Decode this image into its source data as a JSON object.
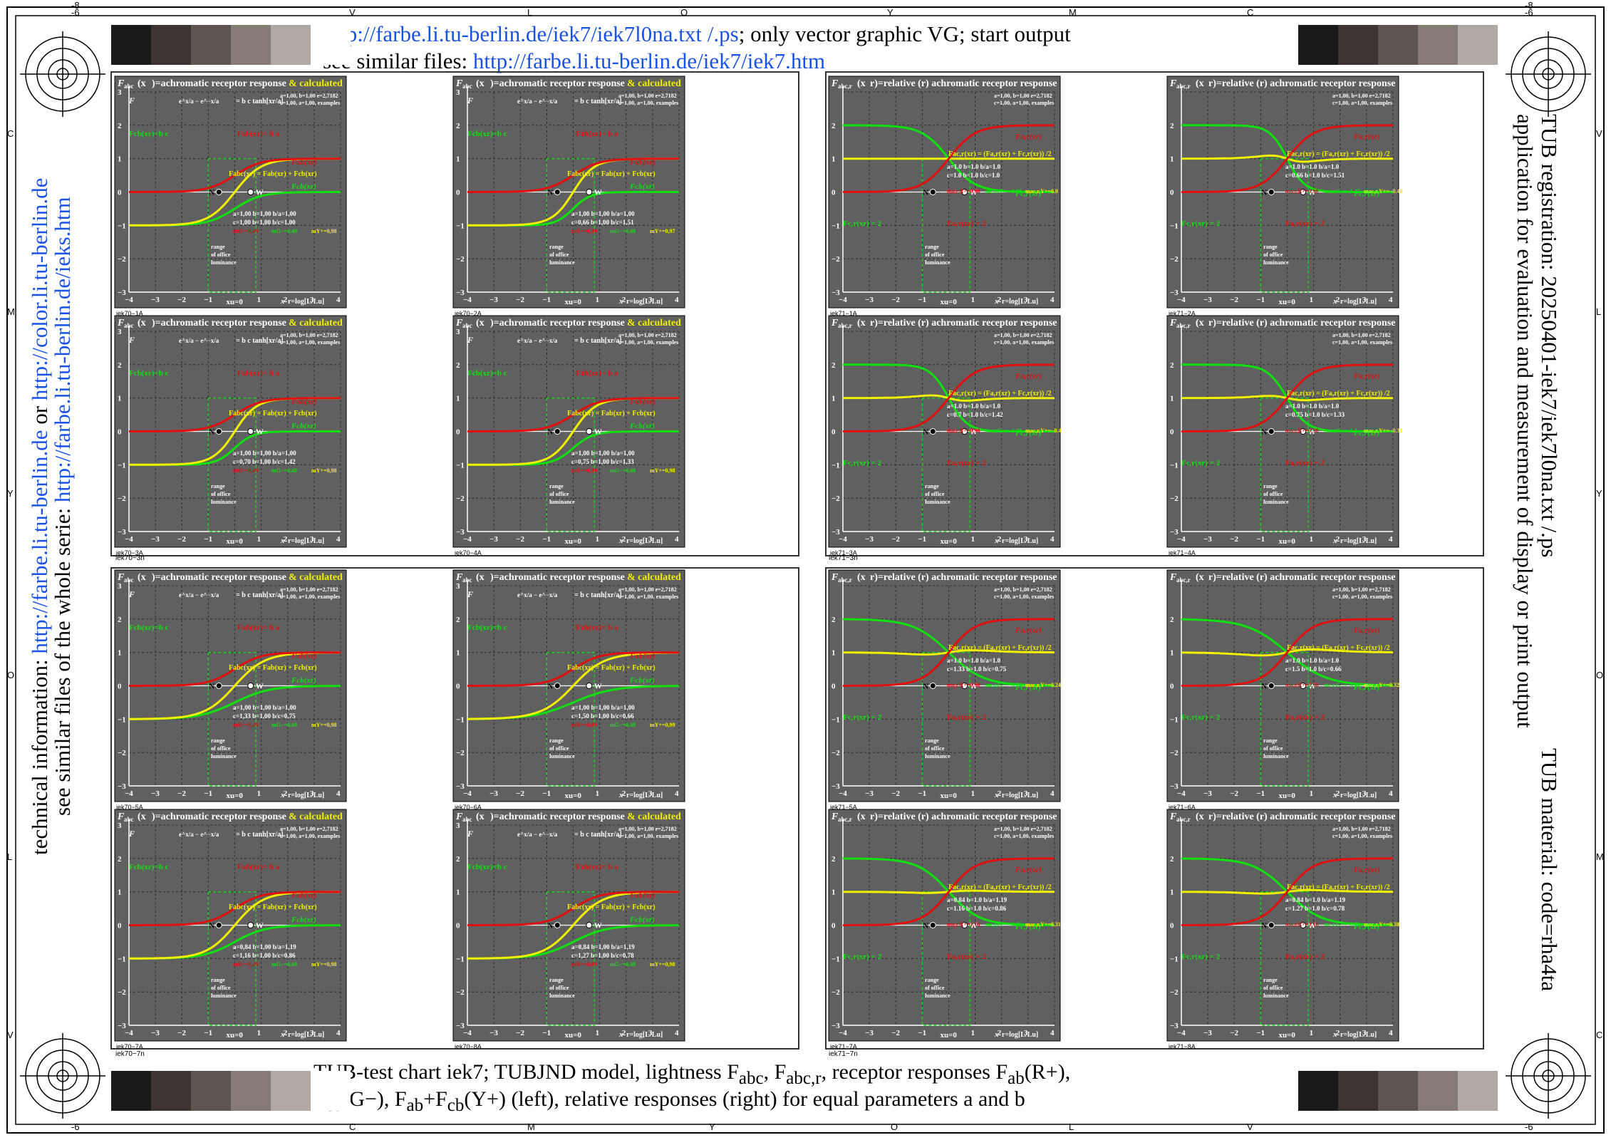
{
  "header": {
    "line1_link": "http://farbe.li.tu-berlin.de/iek7/iek7l0na.txt /.ps",
    "line1_text": "; only vector graphic VG; start output",
    "line2_text": "see similar files: ",
    "line2_link": "http://farbe.li.tu-berlin.de/iek7/iek7.htm"
  },
  "footer": {
    "line1": "TUB-test chart iek7; TUBJND model, lightness F",
    "line1_sub1": "abc",
    "line1_mid": ", F",
    "line1_sub2": "abc,r",
    "line1_mid2": ", receptor responses F",
    "line1_sub3": "ab",
    "line1_end": "(R+),",
    "line2_a": "F",
    "line2_sub1": "cb",
    "line2_b": "(G−), F",
    "line2_sub2": "ab",
    "line2_c": "+F",
    "line2_sub3": "cb",
    "line2_d": "(Y+) (left), relative responses (right) for equal parameters a and b"
  },
  "left_side": {
    "line1": "see similar files of the whole serie: ",
    "line1_link": "http://farbe.li.tu-berlin.de/ieks.htm",
    "line2": "technical information: ",
    "line2_link": "http://farbe.li.tu-berlin.de",
    "line2_or": " or ",
    "line2_link2": "http://color.li.tu-berlin.de"
  },
  "right_side": {
    "line1": "TUB registration: 20250401-iek7/iek7l0na.txt /.ps",
    "line2": "application for evaluation and measurement of display or print output",
    "line3": "TUB material: code=rha4ta"
  },
  "edge_labels": {
    "top": [
      "-6",
      "V",
      "L",
      "O",
      "Y",
      "M",
      "C",
      "-6"
    ],
    "bottom": [
      "-6",
      "C",
      "M",
      "Y",
      "O",
      "L",
      "V",
      "-6"
    ],
    "top_left_corner": "-8",
    "top_right_corner": "-8",
    "left": [
      "C",
      "M",
      "Y",
      "O",
      "L",
      "V"
    ],
    "right": [
      "V",
      "L",
      "Y",
      "O",
      "M",
      "C"
    ]
  },
  "colors": {
    "panel_bg": "#606060",
    "red": "#e01010",
    "green": "#10e010",
    "yellow": "#f0f000",
    "link": "#1a52e6"
  },
  "gray_ramp": [
    "#1a1a1a",
    "#3c3532",
    "#5e5450",
    "#867a74",
    "#b0a8a3",
    "#ffffff"
  ],
  "group_labels": {
    "left_top": "iek70−3n",
    "left_bottom": "iek70−7n",
    "right_top": "iek71−3n",
    "right_bottom": "iek71−7n"
  },
  "panel_text": {
    "left_title": "achromatic receptor response",
    "left_title_add": "& calculated",
    "right_title": "=relative (r) achromatic receptor response",
    "formula_tanh": "= b c tanh[x",
    "examples1": "a=1,00, b=1,00 e=2,7182",
    "examples2": "c=1,00, a=1,00, examples",
    "range": [
      "range",
      "of office",
      "luminance"
    ],
    "N": "N",
    "W": "W",
    "xu0": "x",
    "xlabel": "=log[L/L",
    "x_ticks": [
      "−4",
      "−3",
      "−2",
      "−1",
      "0",
      "1",
      "2",
      "3",
      "4"
    ],
    "y_ticks_left": [
      "3",
      "2",
      "1",
      "0",
      "−1",
      "−2",
      "−3"
    ],
    "y_ticks_right": [
      "2",
      "1",
      "0",
      "−1",
      "−2",
      "−3"
    ]
  },
  "chart_data": [
    {
      "id": "iek70−1A",
      "type": "line",
      "c": 1.0,
      "params": [
        "a=1,00 b=1,00 b/a=1,00",
        "c=1,00 b=1,00 b/c=1,00"
      ],
      "m_line": [
        "m",
        "R+=0,49",
        "m",
        "G−=0,49",
        "m",
        "Y+=0,98"
      ],
      "x": [
        -4,
        4
      ],
      "ylim": [
        -3,
        3
      ],
      "series": [
        {
          "name": "Fab(xr)",
          "formula": "ab"
        },
        {
          "name": "Fcb(xr)",
          "formula": "cb"
        },
        {
          "name": "Fabc(xr)",
          "formula": "abc"
        }
      ]
    },
    {
      "id": "iek70−2A",
      "type": "line",
      "c": 0.66,
      "params": [
        "a=1,00 b=1,00 b/a=1,00",
        "c=0,66 b=1,00 b/c=1,51"
      ],
      "m_line": [
        "m",
        "R+=0,49",
        "m",
        "G−=0,48",
        "m",
        "Y+=0,97"
      ],
      "x": [
        -4,
        4
      ],
      "ylim": [
        -3,
        3
      ],
      "series": [
        {
          "name": "Fab(xr)"
        },
        {
          "name": "Fcb(xr)"
        },
        {
          "name": "Fabc(xr)"
        }
      ]
    },
    {
      "id": "iek70−3A",
      "type": "line",
      "c": 0.7,
      "params": [
        "a=1,00 b=1,00 b/a=1,00",
        "c=0,70 b=1,00 b/c=1,42"
      ],
      "m_line": [
        "m",
        "R+=0,49",
        "m",
        "G−=0,48",
        "m",
        "Y+=0,98"
      ],
      "x": [
        -4,
        4
      ],
      "ylim": [
        -3,
        3
      ],
      "series": [
        {
          "name": "Fab(xr)"
        },
        {
          "name": "Fcb(xr)"
        },
        {
          "name": "Fabc(xr)"
        }
      ]
    },
    {
      "id": "iek70−4A",
      "type": "line",
      "c": 0.75,
      "params": [
        "a=1,00 b=1,00 b/a=1,00",
        "c=0,75 b=1,00 b/c=1,33"
      ],
      "m_line": [
        "m",
        "R+=0,49",
        "m",
        "G−=0,48",
        "m",
        "Y+=0,98"
      ],
      "x": [
        -4,
        4
      ],
      "ylim": [
        -3,
        3
      ],
      "series": [
        {
          "name": "Fab(xr)"
        },
        {
          "name": "Fcb(xr)"
        },
        {
          "name": "Fabc(xr)"
        }
      ]
    },
    {
      "id": "iek70−5A",
      "type": "line",
      "c": 1.33,
      "params": [
        "a=1,00 b=1,00 b/a=1,00",
        "c=1,33 b=1,00 b/c=0,75"
      ],
      "m_line": [
        "m",
        "R+=0,49",
        "m",
        "G−=0,49",
        "m",
        "Y+=0,98"
      ],
      "x": [
        -4,
        4
      ],
      "ylim": [
        -3,
        3
      ],
      "series": [
        {
          "name": "Fab(xr)"
        },
        {
          "name": "Fcb(xr)"
        },
        {
          "name": "Fabc(xr)"
        }
      ]
    },
    {
      "id": "iek70−6A",
      "type": "line",
      "c": 1.5,
      "params": [
        "a=1,00 b=1,00 b/a=1,00",
        "c=1,50 b=1,00 b/c=0,66"
      ],
      "m_line": [
        "m",
        "R+=0,49",
        "m",
        "G−=0,49",
        "m",
        "Y+=0,99"
      ],
      "x": [
        -4,
        4
      ],
      "ylim": [
        -3,
        3
      ],
      "series": [
        {
          "name": "Fab(xr)"
        },
        {
          "name": "Fcb(xr)"
        },
        {
          "name": "Fabc(xr)"
        }
      ]
    },
    {
      "id": "iek70−7A",
      "type": "line",
      "c": 1.16,
      "params": [
        "a=0,84 b=1,00 b/a=1,19",
        "c=1,16 b=1,00 b/c=0,86"
      ],
      "m_line": [
        "m",
        "R+=0,49",
        "m",
        "G−=0,49",
        "m",
        "Y+=0,98"
      ],
      "x": [
        -4,
        4
      ],
      "ylim": [
        -3,
        3
      ],
      "series": [
        {
          "name": "Fab(xr)"
        },
        {
          "name": "Fcb(xr)"
        },
        {
          "name": "Fabc(xr)"
        }
      ]
    },
    {
      "id": "iek70−8A",
      "type": "line",
      "c": 1.27,
      "params": [
        "a=0,84 b=1,00 b/a=1,19",
        "c=1,27 b=1,00 b/c=0,78"
      ],
      "m_line": [
        "m",
        "R+=0,49",
        "m",
        "G−=0,49",
        "m",
        "Y+=0,98"
      ],
      "x": [
        -4,
        4
      ],
      "ylim": [
        -3,
        3
      ],
      "series": [
        {
          "name": "Fab(xr)"
        },
        {
          "name": "Fcb(xr)"
        },
        {
          "name": "Fabc(xr)"
        }
      ]
    },
    {
      "id": "iek71−1A",
      "type": "line",
      "c": 1.0,
      "params": [
        "a=1.0  b=1.0  b/a=1.0",
        "c=1.0  b=1.0  b/c=1.0"
      ],
      "m_line": [
        "m",
        "a,r,R+=0.98",
        "m",
        "c,r,G−=−0.98",
        "m",
        "ac,r,Y+=0.0"
      ],
      "x": [
        -4,
        4
      ],
      "ylim": [
        -3,
        3
      ],
      "series": [
        {
          "name": "Fa,r(xr)"
        },
        {
          "name": "Fc,r(xr)"
        },
        {
          "name": "Fac,r(xr)"
        }
      ]
    },
    {
      "id": "iek71−2A",
      "type": "line",
      "c": 0.66,
      "params": [
        "a=1.0  b=1.0  b/a=1.0",
        "c=0.66  b=1.0  b/c=1.51"
      ],
      "m_line": [
        "m",
        "a,r,R+=0.98",
        "m",
        "c,r,G−=−1.47",
        "m",
        "ac,r,Y+=−0.48"
      ],
      "x": [
        -4,
        4
      ],
      "ylim": [
        -3,
        3
      ],
      "series": [
        {
          "name": "Fa,r(xr)"
        },
        {
          "name": "Fc,r(xr)"
        },
        {
          "name": "Fac,r(xr)"
        }
      ]
    },
    {
      "id": "iek71−3A",
      "type": "line",
      "c": 0.7,
      "params": [
        "a=1.0  b=1.0  b/a=1.0",
        "c=0.7  b=1.0  b/c=1.42"
      ],
      "m_line": [
        "m",
        "a,r,R+=0.98",
        "m",
        "c,r,G−=−1.39",
        "m",
        "ac,r,Y+=−0.4"
      ],
      "x": [
        -4,
        4
      ],
      "ylim": [
        -3,
        3
      ],
      "series": [
        {
          "name": "Fa,r(xr)"
        },
        {
          "name": "Fc,r(xr)"
        },
        {
          "name": "Fac,r(xr)"
        }
      ]
    },
    {
      "id": "iek71−4A",
      "type": "line",
      "c": 0.75,
      "params": [
        "a=1.0  b=1.0  b/a=1.0",
        "c=0.75  b=1.0  b/c=1.33"
      ],
      "m_line": [
        "m",
        "a,r,R+=0.98",
        "m",
        "c,r,G−=−1.3",
        "m",
        "ac,r,Y+=−0.31"
      ],
      "x": [
        -4,
        4
      ],
      "ylim": [
        -3,
        3
      ],
      "series": [
        {
          "name": "Fa,r(xr)"
        },
        {
          "name": "Fc,r(xr)"
        },
        {
          "name": "Fac,r(xr)"
        }
      ]
    },
    {
      "id": "iek71−5A",
      "type": "line",
      "c": 1.33,
      "params": [
        "a=1.0  b=1.0  b/a=1.0",
        "c=1.33  b=1.0  b/c=0.75"
      ],
      "m_line": [
        "m",
        "a,r,R+=0.98",
        "m",
        "c,r,G−=−0.74",
        "m",
        "ac,r,Y+=0.24"
      ],
      "x": [
        -4,
        4
      ],
      "ylim": [
        -3,
        3
      ],
      "series": [
        {
          "name": "Fa,r(xr)"
        },
        {
          "name": "Fc,r(xr)"
        },
        {
          "name": "Fac,r(xr)"
        }
      ]
    },
    {
      "id": "iek71−6A",
      "type": "line",
      "c": 1.5,
      "params": [
        "a=1.0  b=1.0  b/a=1.0",
        "c=1.5  b=1.0  b/c=0.66"
      ],
      "m_line": [
        "m",
        "a,r,R+=0.98",
        "m",
        "c,r,G−=−0.66",
        "m",
        "ac,r,Y+=0.32"
      ],
      "x": [
        -4,
        4
      ],
      "ylim": [
        -3,
        3
      ],
      "series": [
        {
          "name": "Fa,r(xr)"
        },
        {
          "name": "Fc,r(xr)"
        },
        {
          "name": "Fac,r(xr)"
        }
      ]
    },
    {
      "id": "iek71−7A",
      "type": "line",
      "c": 1.16,
      "params": [
        "a=0.84  b=1.0  b/a=1.19",
        "c=1.16  b=1.0  b/c=0.86"
      ],
      "m_line": [
        "m",
        "a,r,R+=1.16",
        "m",
        "c,r,G−=−0.85",
        "m",
        "ac,r,Y+=0.31"
      ],
      "x": [
        -4,
        4
      ],
      "ylim": [
        -3,
        3
      ],
      "series": [
        {
          "name": "Fa,r(xr)"
        },
        {
          "name": "Fc,r(xr)"
        },
        {
          "name": "Fac,r(xr)"
        }
      ]
    },
    {
      "id": "iek71−8A",
      "type": "line",
      "c": 1.27,
      "params": [
        "a=0.84  b=1.0  b/a=1.19",
        "c=1.27  b=1.0  b/c=0.78"
      ],
      "m_line": [
        "m",
        "a,r,R+=1.16",
        "m",
        "c,r,G−=−0.78",
        "m",
        "ac,r,Y+=0.38"
      ],
      "x": [
        -4,
        4
      ],
      "ylim": [
        -3,
        3
      ],
      "series": [
        {
          "name": "Fa,r(xr)"
        },
        {
          "name": "Fc,r(xr)"
        },
        {
          "name": "Fac,r(xr)"
        }
      ]
    }
  ]
}
